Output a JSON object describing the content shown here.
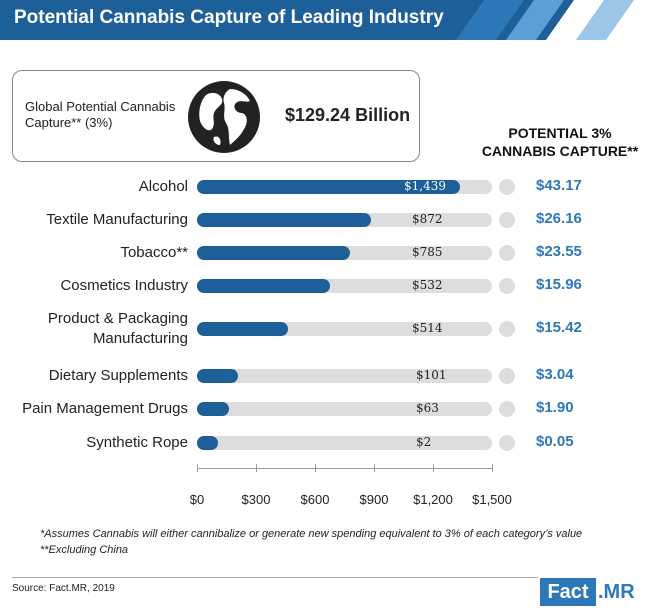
{
  "header": {
    "title": "Potential Cannabis Capture of Leading Industry"
  },
  "global": {
    "label": "Global Potential Cannabis Capture** (3%)",
    "value": "$129.24 Billion"
  },
  "capture_column_title": "POTENTIAL 3% CANNABIS CAPTURE**",
  "chart_data": {
    "type": "bar",
    "orientation": "horizontal",
    "categories": [
      "Alcohol",
      "Textile Manufacturing",
      "Tobacco**",
      "Cosmetics Industry",
      "Product & Packaging Manufacturing",
      "Dietary Supplements",
      "Pain Management Drugs",
      "Synthetic Rope"
    ],
    "values": [
      1439,
      872,
      785,
      532,
      514,
      101,
      63,
      2
    ],
    "value_labels": [
      "$1,439",
      "$872",
      "$785",
      "$532",
      "$514",
      "$101",
      "$63",
      "$2"
    ],
    "displayed_fill_fraction": [
      0.89,
      0.59,
      0.52,
      0.45,
      0.31,
      0.14,
      0.11,
      0.07
    ],
    "capture_values": [
      "$43.17",
      "$26.16",
      "$23.55",
      "$15.96",
      "$15.42",
      "$3.04",
      "$1.90",
      "$0.05"
    ],
    "x_ticks": [
      "$0",
      "$300",
      "$600",
      "$900",
      "$1,200",
      "$1,500"
    ],
    "xlim": [
      0,
      1500
    ],
    "bar_color": "#1d5f99",
    "track_color": "#dddddd",
    "capture_color": "#2c78b8"
  },
  "footnotes": [
    "*Assumes Cannabis will either cannibalize or generate new spending equivalent to 3% of each category’s value",
    "**Excluding China"
  ],
  "source": "Source: Fact.MR, 2019",
  "logo": {
    "part1": "Fact",
    "part2": ".MR"
  }
}
